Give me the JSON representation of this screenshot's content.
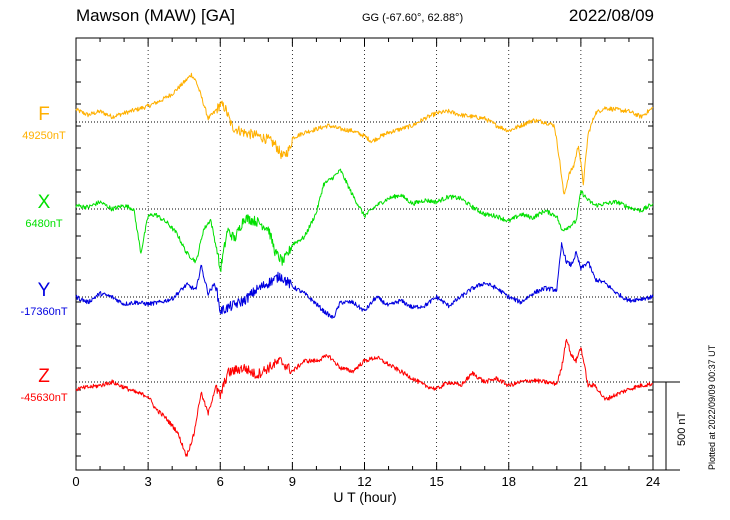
{
  "header": {
    "station": "Mawson (MAW)  [GA]",
    "coords": "GG (-67.60°,  62.88°)",
    "date": "2022/08/09"
  },
  "plotted_note": "Plotted at 2022/09/09 00:37 UT",
  "scale_label": "500 nT",
  "chart_data": {
    "type": "line",
    "title": "Mawson (MAW)  [GA]",
    "xlabel": "U T (hour)",
    "ylabel": "",
    "xlim": [
      0,
      24
    ],
    "x_ticks": [
      "0",
      "3",
      "6",
      "9",
      "12",
      "15",
      "18",
      "21",
      "24"
    ],
    "grid": "dotted baselines, dotted verticals every 3 h",
    "scale_bar_nT": 500,
    "series": [
      {
        "name": "F",
        "color": "#ffb000",
        "baseline": 49250,
        "baseline_label": "49250nT",
        "x": [
          0,
          0.5,
          1,
          1.5,
          2,
          2.5,
          3,
          3.5,
          4,
          4.3,
          4.6,
          4.8,
          5,
          5.2,
          5.5,
          5.8,
          6,
          6.2,
          6.5,
          7,
          7.3,
          7.6,
          8,
          8.3,
          8.6,
          8.9,
          9,
          9.5,
          10,
          10.5,
          11,
          11.5,
          12,
          12.3,
          12.7,
          13,
          13.5,
          14,
          14.5,
          15,
          15.5,
          16,
          16.5,
          17,
          17.5,
          18,
          18.5,
          19,
          19.5,
          19.9,
          20.1,
          20.3,
          20.5,
          20.7,
          20.9,
          21.1,
          21.3,
          21.6,
          22,
          22.5,
          23,
          23.5,
          24
        ],
        "values": [
          70,
          40,
          60,
          30,
          50,
          70,
          90,
          120,
          160,
          200,
          240,
          270,
          230,
          150,
          20,
          60,
          100,
          80,
          -30,
          -60,
          -70,
          -80,
          -100,
          -130,
          -200,
          -150,
          -90,
          -60,
          -40,
          -20,
          -40,
          -50,
          -80,
          -110,
          -80,
          -60,
          -40,
          -20,
          20,
          50,
          60,
          40,
          30,
          20,
          -20,
          -50,
          -20,
          10,
          0,
          -20,
          -200,
          -420,
          -300,
          -250,
          -130,
          -350,
          -70,
          50,
          80,
          70,
          60,
          30,
          80
        ]
      },
      {
        "name": "X",
        "color": "#00e000",
        "baseline": 6480,
        "baseline_label": "6480nT",
        "x": [
          0,
          0.5,
          1,
          1.5,
          2,
          2.4,
          2.7,
          3,
          3.3,
          3.8,
          4.2,
          4.6,
          5,
          5.3,
          5.6,
          5.9,
          6,
          6.3,
          6.6,
          7,
          7.5,
          8,
          8.3,
          8.6,
          8.8,
          9,
          9.5,
          10,
          10.3,
          10.7,
          11,
          11.5,
          12,
          12.5,
          13,
          13.5,
          14,
          14.5,
          15,
          15.5,
          16,
          16.5,
          17,
          17.5,
          18,
          18.5,
          19,
          19.5,
          20,
          20.2,
          20.5,
          20.8,
          21,
          21.3,
          21.6,
          22,
          22.5,
          23,
          23.5,
          24
        ],
        "values": [
          20,
          10,
          40,
          0,
          20,
          0,
          -250,
          -40,
          -30,
          -80,
          -140,
          -250,
          -300,
          -120,
          -60,
          -260,
          -350,
          -120,
          -170,
          -50,
          -70,
          -110,
          -250,
          -300,
          -260,
          -200,
          -160,
          -20,
          140,
          180,
          220,
          80,
          -40,
          20,
          60,
          80,
          30,
          50,
          40,
          70,
          60,
          10,
          -30,
          -40,
          -70,
          -30,
          -50,
          -10,
          -40,
          -120,
          -100,
          -70,
          100,
          50,
          20,
          30,
          40,
          10,
          -10,
          30
        ]
      },
      {
        "name": "Y",
        "color": "#0000e0",
        "baseline": -17360,
        "baseline_label": "-17360nT",
        "x": [
          0,
          0.5,
          1,
          1.5,
          2,
          2.5,
          3,
          3.5,
          4,
          4.3,
          4.6,
          5,
          5.2,
          5.5,
          5.8,
          6,
          6.5,
          7,
          7.5,
          8,
          8.5,
          9,
          9.5,
          10,
          10.3,
          10.7,
          11,
          11.5,
          12,
          12.5,
          13,
          13.5,
          14,
          14.5,
          15,
          15.5,
          16,
          16.5,
          17,
          17.5,
          18,
          18.5,
          19,
          19.5,
          20,
          20.2,
          20.4,
          20.6,
          20.8,
          21,
          21.3,
          21.6,
          22,
          22.5,
          23,
          23.5,
          24
        ],
        "values": [
          0,
          -30,
          20,
          0,
          -40,
          -30,
          -40,
          -30,
          -10,
          30,
          70,
          40,
          180,
          20,
          80,
          -80,
          -50,
          -20,
          40,
          80,
          120,
          60,
          20,
          -40,
          -80,
          -120,
          -30,
          -30,
          -80,
          0,
          -50,
          -20,
          -60,
          -50,
          0,
          -50,
          0,
          50,
          80,
          50,
          0,
          -30,
          20,
          50,
          40,
          300,
          200,
          180,
          250,
          160,
          200,
          100,
          80,
          20,
          -20,
          -10,
          0
        ]
      },
      {
        "name": "Z",
        "color": "#ff0000",
        "baseline": -45630,
        "baseline_label": "-45630nT",
        "x": [
          0,
          0.5,
          1,
          1.5,
          2,
          2.5,
          3,
          3.3,
          3.7,
          4.2,
          4.6,
          4.9,
          5.2,
          5.5,
          5.8,
          6,
          6.3,
          6.7,
          7,
          7.5,
          8,
          8.5,
          9,
          9.5,
          10,
          10.5,
          11,
          11.5,
          12,
          12.5,
          13,
          13.5,
          14,
          14.5,
          15,
          15.5,
          16,
          16.5,
          17,
          17.5,
          18,
          18.5,
          19,
          19.5,
          20,
          20.2,
          20.4,
          20.6,
          20.8,
          21,
          21.3,
          21.6,
          22,
          22.5,
          23,
          23.5,
          24
        ],
        "values": [
          -40,
          -30,
          -20,
          0,
          -30,
          -60,
          -80,
          -150,
          -200,
          -280,
          -420,
          -300,
          -60,
          -180,
          -30,
          -80,
          50,
          70,
          80,
          40,
          80,
          120,
          60,
          120,
          120,
          150,
          80,
          60,
          120,
          140,
          100,
          60,
          20,
          -20,
          -40,
          0,
          -20,
          50,
          0,
          20,
          -20,
          0,
          10,
          0,
          -10,
          80,
          250,
          150,
          120,
          200,
          -20,
          -20,
          -100,
          -70,
          -40,
          -20,
          -10
        ]
      }
    ]
  }
}
